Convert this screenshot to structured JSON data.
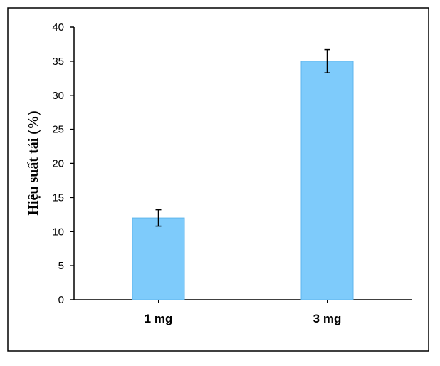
{
  "chart_data": {
    "type": "bar",
    "title": "",
    "xlabel": "",
    "ylabel": "Hiệu suất tải (%)",
    "categories": [
      "1 mg",
      "3 mg"
    ],
    "values": [
      12,
      35
    ],
    "errors": [
      1.2,
      1.7
    ],
    "ylim": [
      0,
      40
    ],
    "yticks": [
      0,
      5,
      10,
      15,
      20,
      25,
      30,
      35,
      40
    ],
    "grid": false,
    "legend": "none",
    "bar_color": "#7ecbfb",
    "bar_edge_color": "#5fb6ec"
  }
}
